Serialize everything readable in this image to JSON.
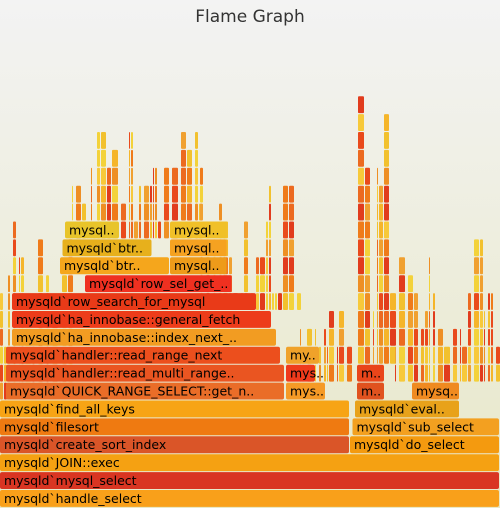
{
  "title": "Flame Graph",
  "chart_data": {
    "type": "flamegraph",
    "title": "Flame Graph",
    "frames": [
      {
        "depth": 0,
        "start": 0,
        "width": 1.0,
        "label": "mysqld`handle_select",
        "color": "#f9a01a"
      },
      {
        "depth": 1,
        "start": 0,
        "width": 1.0,
        "label": "mysqld`mysql_select",
        "color": "#d93522"
      },
      {
        "depth": 2,
        "start": 0,
        "width": 1.0,
        "label": "mysqld`JOIN::exec",
        "color": "#f5a112"
      },
      {
        "depth": 3,
        "start": 0,
        "width": 0.7,
        "label": "mysqld`create_sort_index",
        "color": "#da5528"
      },
      {
        "depth": 3,
        "start": 0.7,
        "width": 0.3,
        "label": "mysqld`do_select",
        "color": "#f49a0f"
      },
      {
        "depth": 4,
        "start": 0,
        "width": 0.7,
        "label": "mysqld`filesort",
        "color": "#ef7a11"
      },
      {
        "depth": 4,
        "start": 0.705,
        "width": 0.295,
        "label": "mysqld`sub_select",
        "color": "#f3a020"
      },
      {
        "depth": 5,
        "start": 0,
        "width": 0.7,
        "label": "mysqld`find_all_keys",
        "color": "#f7a415"
      },
      {
        "depth": 5,
        "start": 0.71,
        "width": 0.21,
        "label": "mysqld`eval..",
        "color": "#e8a21a"
      },
      {
        "depth": 6,
        "start": 0.012,
        "width": 0.558,
        "label": "mysqld`QUICK_RANGE_SELECT::get_n..",
        "color": "#ea6d28"
      },
      {
        "depth": 6,
        "start": 0.572,
        "width": 0.08,
        "label": "mys..",
        "color": "#f59a26"
      },
      {
        "depth": 6,
        "start": 0.714,
        "width": 0.056,
        "label": "m..",
        "color": "#e0521f"
      },
      {
        "depth": 6,
        "start": 0.824,
        "width": 0.096,
        "label": "mysq..",
        "color": "#ef8a20"
      },
      {
        "depth": 7,
        "start": 0.012,
        "width": 0.558,
        "label": "mysqld`handler::read_multi_range..",
        "color": "#ea5521"
      },
      {
        "depth": 7,
        "start": 0.572,
        "width": 0.06,
        "label": "mys..",
        "color": "#ef3b1c"
      },
      {
        "depth": 7,
        "start": 0.714,
        "width": 0.056,
        "label": "m..",
        "color": "#e9451a"
      },
      {
        "depth": 8,
        "start": 0.012,
        "width": 0.55,
        "label": "mysqld`handler::read_range_next",
        "color": "#ec4f1d"
      },
      {
        "depth": 8,
        "start": 0.572,
        "width": 0.068,
        "label": "my..",
        "color": "#f0a22a"
      },
      {
        "depth": 9,
        "start": 0.024,
        "width": 0.53,
        "label": "mysqld`ha_innobase::index_next_..",
        "color": "#f29c22"
      },
      {
        "depth": 10,
        "start": 0.024,
        "width": 0.52,
        "label": "mysqld`ha_innobase::general_fetch",
        "color": "#ed3c1a"
      },
      {
        "depth": 11,
        "start": 0.024,
        "width": 0.49,
        "label": "mysqld`row_search_for_mysql",
        "color": "#e93a18"
      },
      {
        "depth": 12,
        "start": 0.17,
        "width": 0.295,
        "label": "mysqld`row_sel_get_..",
        "color": "#ef3020"
      },
      {
        "depth": 13,
        "start": 0.12,
        "width": 0.22,
        "label": "mysqld`btr..",
        "color": "#f5a61c"
      },
      {
        "depth": 13,
        "start": 0.34,
        "width": 0.115,
        "label": "mysql..",
        "color": "#ee9b1a"
      },
      {
        "depth": 14,
        "start": 0.125,
        "width": 0.18,
        "label": "mysqld`btr..",
        "color": "#e7b01c"
      },
      {
        "depth": 14,
        "start": 0.34,
        "width": 0.115,
        "label": "mysql..",
        "color": "#f5a221"
      },
      {
        "depth": 15,
        "start": 0.13,
        "width": 0.11,
        "label": "mysql..",
        "color": "#e8c42a"
      },
      {
        "depth": 15,
        "start": 0.34,
        "width": 0.115,
        "label": "mysql..",
        "color": "#f0c028"
      }
    ]
  }
}
